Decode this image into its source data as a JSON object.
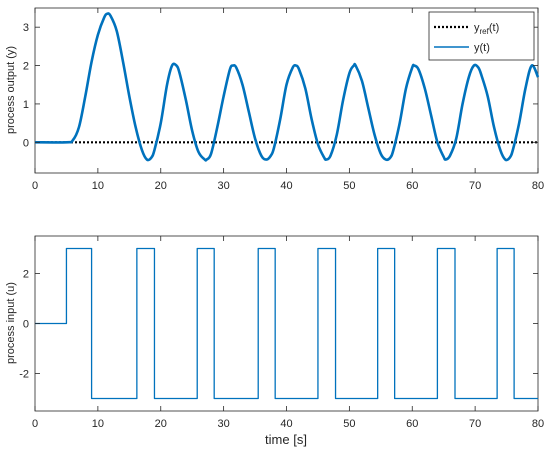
{
  "chart_data": [
    {
      "type": "line",
      "ylabel": "process output (y)",
      "xlabel": "",
      "xlim": [
        0,
        80
      ],
      "ylim": [
        -0.8,
        3.5
      ],
      "xticks": [
        0,
        10,
        20,
        30,
        40,
        50,
        60,
        70,
        80
      ],
      "yticks": [
        0,
        1,
        2,
        3
      ],
      "grid": false,
      "legend_position": "top-right",
      "series": [
        {
          "name_base": "y",
          "name_sub": "ref",
          "name_suffix": "(t)",
          "style": "dotted",
          "color": "#000000",
          "x": [
            0,
            80
          ],
          "y": [
            0,
            0
          ]
        },
        {
          "name": "y(t)",
          "style": "solid",
          "color": "#0072BD",
          "x": [
            0,
            5,
            6,
            7,
            8,
            9,
            10,
            11,
            11.5,
            12,
            13,
            14,
            15,
            16,
            17,
            17.8,
            18.5,
            19,
            20,
            21,
            21.8,
            22.5,
            23,
            24,
            25,
            26,
            27,
            27.3,
            28,
            29,
            30,
            31,
            31.5,
            32,
            33,
            34,
            35,
            36,
            36.8,
            37.5,
            38,
            39,
            40,
            41,
            41.5,
            42,
            43,
            44,
            45,
            46,
            46.3,
            47,
            48,
            49,
            50,
            50.7,
            51,
            52,
            53,
            54,
            55,
            55.8,
            56.5,
            57,
            58,
            59,
            60,
            60.3,
            61,
            62,
            63,
            64,
            65,
            65.3,
            66,
            67,
            68,
            69,
            69.8,
            70.5,
            71,
            72,
            73,
            74,
            74.8,
            75.5,
            76,
            77,
            78,
            79,
            80
          ],
          "y": [
            0,
            0,
            0.05,
            0.4,
            1.2,
            2.1,
            2.8,
            3.25,
            3.35,
            3.3,
            2.9,
            2.1,
            1.2,
            0.4,
            -0.2,
            -0.45,
            -0.4,
            -0.2,
            0.5,
            1.5,
            2.0,
            2.0,
            1.8,
            1.1,
            0.3,
            -0.25,
            -0.45,
            -0.45,
            -0.3,
            0.4,
            1.2,
            1.9,
            2.0,
            1.95,
            1.5,
            0.8,
            0.1,
            -0.35,
            -0.45,
            -0.35,
            -0.15,
            0.6,
            1.5,
            1.95,
            2.0,
            1.9,
            1.4,
            0.6,
            -0.05,
            -0.4,
            -0.45,
            -0.35,
            0.2,
            1.1,
            1.8,
            2.0,
            2.0,
            1.6,
            0.9,
            0.2,
            -0.3,
            -0.45,
            -0.4,
            -0.2,
            0.5,
            1.4,
            1.95,
            2.0,
            1.9,
            1.4,
            0.7,
            0.0,
            -0.38,
            -0.45,
            -0.35,
            0.1,
            1.0,
            1.7,
            2.0,
            1.95,
            1.75,
            1.2,
            0.4,
            -0.2,
            -0.45,
            -0.4,
            -0.2,
            0.5,
            1.4,
            2.0,
            1.7
          ]
        }
      ]
    },
    {
      "type": "line",
      "ylabel": "process input (u)",
      "xlabel": "time [s]",
      "xlim": [
        0,
        80
      ],
      "ylim": [
        -3.5,
        3.5
      ],
      "xticks": [
        0,
        10,
        20,
        30,
        40,
        50,
        60,
        70,
        80
      ],
      "yticks": [
        -2,
        0,
        2
      ],
      "grid": false,
      "series": [
        {
          "style": "step",
          "color": "#0072BD",
          "x": [
            0,
            5,
            5,
            9,
            9,
            16.2,
            16.2,
            19,
            19,
            25.8,
            25.8,
            28.5,
            28.5,
            35.5,
            35.5,
            38.2,
            38.2,
            45,
            45,
            47.8,
            47.8,
            54.5,
            54.5,
            57.2,
            57.2,
            64,
            64,
            66.8,
            66.8,
            73.5,
            73.5,
            76.2,
            76.2,
            80
          ],
          "y": [
            0,
            0,
            3,
            3,
            -3,
            -3,
            3,
            3,
            -3,
            -3,
            3,
            3,
            -3,
            -3,
            3,
            3,
            -3,
            -3,
            3,
            3,
            -3,
            -3,
            3,
            3,
            -3,
            -3,
            3,
            3,
            -3,
            -3,
            3,
            3,
            -3,
            -3
          ]
        }
      ]
    }
  ]
}
